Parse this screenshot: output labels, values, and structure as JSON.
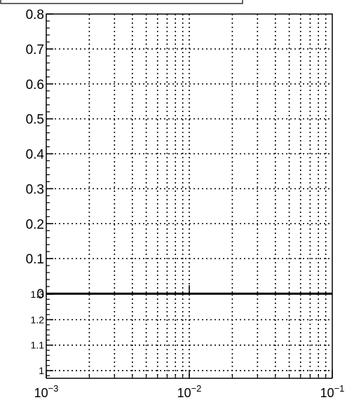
{
  "chart_data": [
    {
      "type": "line",
      "title": "",
      "xlabel": "",
      "ylabel": "",
      "x_scale": "log",
      "xlim": [
        0.001,
        0.1
      ],
      "ylim": [
        0,
        0.8
      ],
      "grid": true,
      "y_ticks": [
        "0",
        "0.1",
        "0.2",
        "0.3",
        "0.4",
        "0.5",
        "0.6",
        "0.7",
        "0.8"
      ],
      "y_tick_values": [
        0,
        0.1,
        0.2,
        0.3,
        0.4,
        0.5,
        0.6,
        0.7,
        0.8
      ],
      "series": []
    },
    {
      "type": "line",
      "title": "",
      "xlabel": "",
      "ylabel": "",
      "x_scale": "log",
      "xlim": [
        0.001,
        0.1
      ],
      "ylim": [
        0.97,
        1.3
      ],
      "grid": true,
      "y_ticks": [
        "1",
        "1.1",
        "1.2",
        "1.3"
      ],
      "y_tick_values": [
        1,
        1.1,
        1.2,
        1.3
      ],
      "x_ticks": [
        {
          "base": "10",
          "exp": "−3",
          "value": 0.001
        },
        {
          "base": "10",
          "exp": "−2",
          "value": 0.01
        },
        {
          "base": "10",
          "exp": "−1",
          "value": 0.1
        }
      ],
      "series": []
    }
  ]
}
